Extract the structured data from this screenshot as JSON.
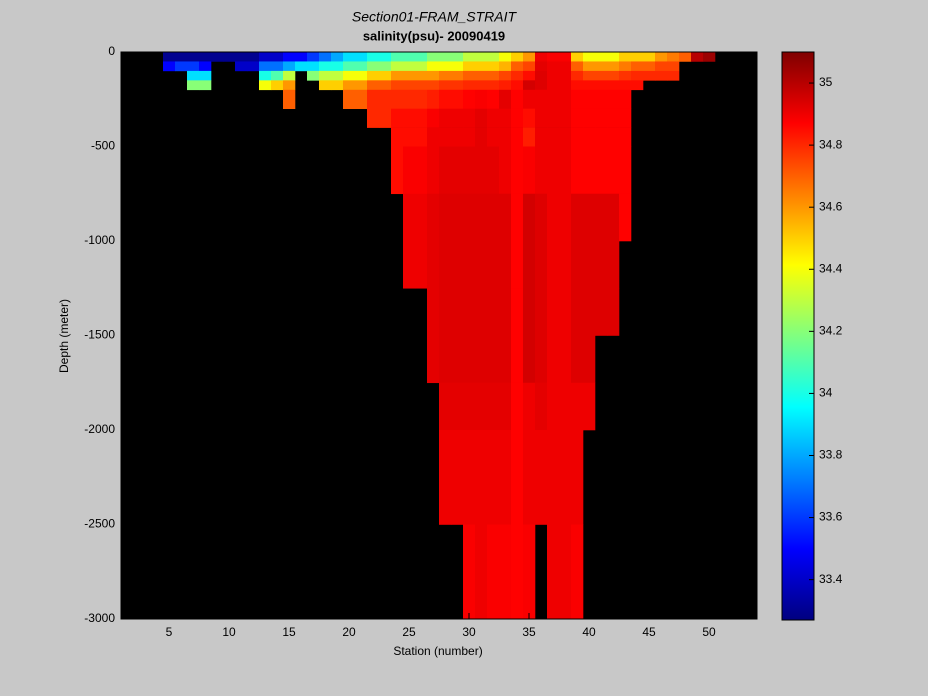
{
  "chart_data": {
    "type": "heatmap",
    "title": "Section01-FRAM_STRAIT",
    "subtitle": "salinity(psu)- 20090419",
    "x_label": "Station (number)",
    "y_label": "Depth (meter)",
    "colormap": "jet",
    "xlim": [
      1,
      54
    ],
    "xticks": [
      5,
      10,
      15,
      20,
      25,
      30,
      35,
      40,
      45,
      50
    ],
    "ylim": [
      -3000,
      0
    ],
    "yticks": [
      -3000,
      -2500,
      -2000,
      -1500,
      -1000,
      -500,
      0
    ],
    "clim": [
      33.27,
      35.1
    ],
    "cticks": [
      33.4,
      33.6,
      33.8,
      34,
      34.2,
      34.4,
      34.6,
      34.8,
      35
    ],
    "x": [
      5,
      6,
      7,
      8,
      9,
      10,
      11,
      12,
      13,
      14,
      15,
      16,
      17,
      18,
      19,
      20,
      21,
      22,
      23,
      24,
      25,
      26,
      27,
      28,
      29,
      30,
      31,
      32,
      33,
      34,
      35,
      36,
      37,
      38,
      39,
      40,
      41,
      42,
      43,
      44,
      45,
      46,
      47,
      48,
      49,
      50
    ],
    "y_edges": [
      0,
      -50,
      -100,
      -150,
      -200,
      -300,
      -400,
      -500,
      -750,
      -1000,
      -1250,
      -1500,
      -1750,
      -2000,
      -2500,
      -3000
    ],
    "values": [
      [
        33.3,
        33.5,
        null,
        null,
        null,
        null,
        null,
        null,
        null,
        null,
        null,
        null,
        null,
        null,
        null
      ],
      [
        33.3,
        33.6,
        null,
        null,
        null,
        null,
        null,
        null,
        null,
        null,
        null,
        null,
        null,
        null,
        null
      ],
      [
        33.3,
        33.6,
        33.9,
        34.2,
        null,
        null,
        null,
        null,
        null,
        null,
        null,
        null,
        null,
        null,
        null
      ],
      [
        33.3,
        33.5,
        33.9,
        34.2,
        null,
        null,
        null,
        null,
        null,
        null,
        null,
        null,
        null,
        null,
        null
      ],
      [
        33.3,
        null,
        null,
        null,
        null,
        null,
        null,
        null,
        null,
        null,
        null,
        null,
        null,
        null,
        null
      ],
      [
        33.3,
        null,
        null,
        null,
        null,
        null,
        null,
        null,
        null,
        null,
        null,
        null,
        null,
        null,
        null
      ],
      [
        33.3,
        33.4,
        null,
        null,
        null,
        null,
        null,
        null,
        null,
        null,
        null,
        null,
        null,
        null,
        null
      ],
      [
        33.3,
        33.4,
        null,
        null,
        null,
        null,
        null,
        null,
        null,
        null,
        null,
        null,
        null,
        null,
        null
      ],
      [
        33.4,
        33.7,
        34.0,
        34.4,
        null,
        null,
        null,
        null,
        null,
        null,
        null,
        null,
        null,
        null,
        null
      ],
      [
        33.4,
        33.7,
        34.1,
        34.5,
        null,
        null,
        null,
        null,
        null,
        null,
        null,
        null,
        null,
        null,
        null
      ],
      [
        33.5,
        33.8,
        34.3,
        34.6,
        34.7,
        null,
        null,
        null,
        null,
        null,
        null,
        null,
        null,
        null,
        null
      ],
      [
        33.5,
        33.9,
        null,
        null,
        null,
        null,
        null,
        null,
        null,
        null,
        null,
        null,
        null,
        null,
        null
      ],
      [
        33.6,
        33.9,
        34.2,
        null,
        null,
        null,
        null,
        null,
        null,
        null,
        null,
        null,
        null,
        null,
        null
      ],
      [
        33.7,
        34.0,
        34.3,
        34.5,
        null,
        null,
        null,
        null,
        null,
        null,
        null,
        null,
        null,
        null,
        null
      ],
      [
        33.8,
        34.0,
        34.3,
        34.5,
        null,
        null,
        null,
        null,
        null,
        null,
        null,
        null,
        null,
        null,
        null
      ],
      [
        33.9,
        34.1,
        34.4,
        34.6,
        34.7,
        null,
        null,
        null,
        null,
        null,
        null,
        null,
        null,
        null,
        null
      ],
      [
        33.9,
        34.1,
        34.4,
        34.6,
        34.7,
        null,
        null,
        null,
        null,
        null,
        null,
        null,
        null,
        null,
        null
      ],
      [
        34.0,
        34.2,
        34.5,
        34.7,
        34.8,
        34.8,
        null,
        null,
        null,
        null,
        null,
        null,
        null,
        null,
        null
      ],
      [
        34.0,
        34.2,
        34.5,
        34.7,
        34.8,
        34.8,
        null,
        null,
        null,
        null,
        null,
        null,
        null,
        null,
        null
      ],
      [
        34.1,
        34.3,
        34.6,
        34.75,
        34.8,
        34.85,
        34.85,
        34.85,
        null,
        null,
        null,
        null,
        null,
        null,
        null
      ],
      [
        34.1,
        34.3,
        34.6,
        34.75,
        34.8,
        34.85,
        34.85,
        34.88,
        34.9,
        34.9,
        null,
        null,
        null,
        null,
        null
      ],
      [
        34.1,
        34.3,
        34.6,
        34.75,
        34.8,
        34.85,
        34.85,
        34.88,
        34.9,
        34.9,
        null,
        null,
        null,
        null,
        null
      ],
      [
        34.2,
        34.4,
        34.6,
        34.75,
        34.82,
        34.88,
        34.9,
        34.9,
        34.92,
        34.92,
        34.92,
        34.92,
        null,
        null,
        null
      ],
      [
        34.2,
        34.4,
        34.65,
        34.78,
        34.85,
        34.9,
        34.9,
        34.92,
        34.93,
        34.93,
        34.93,
        34.93,
        34.92,
        34.9,
        null
      ],
      [
        34.2,
        34.4,
        34.65,
        34.78,
        34.85,
        34.9,
        34.9,
        34.92,
        34.93,
        34.93,
        34.93,
        34.93,
        34.92,
        34.9,
        null
      ],
      [
        34.3,
        34.5,
        34.7,
        34.8,
        34.87,
        34.9,
        34.9,
        34.92,
        34.93,
        34.93,
        34.93,
        34.93,
        34.92,
        34.9,
        34.88
      ],
      [
        34.3,
        34.5,
        34.7,
        34.8,
        34.88,
        34.92,
        34.92,
        34.92,
        34.93,
        34.93,
        34.93,
        34.93,
        34.92,
        34.9,
        34.9
      ],
      [
        34.3,
        34.5,
        34.7,
        34.8,
        34.87,
        34.9,
        34.9,
        34.92,
        34.93,
        34.93,
        34.93,
        34.93,
        34.92,
        34.9,
        34.88
      ],
      [
        34.4,
        34.55,
        34.75,
        34.82,
        34.92,
        34.9,
        34.9,
        34.9,
        34.93,
        34.93,
        34.93,
        34.93,
        34.92,
        34.9,
        34.88
      ],
      [
        34.5,
        34.7,
        34.8,
        34.85,
        34.87,
        34.87,
        34.87,
        34.87,
        34.87,
        34.87,
        34.87,
        34.87,
        34.87,
        34.87,
        34.87
      ],
      [
        34.6,
        34.75,
        34.85,
        34.95,
        34.9,
        34.85,
        34.82,
        34.88,
        34.95,
        34.95,
        34.95,
        34.95,
        34.9,
        34.9,
        34.88
      ],
      [
        34.9,
        34.92,
        34.93,
        34.93,
        34.9,
        34.9,
        34.9,
        34.9,
        34.93,
        34.93,
        34.93,
        34.93,
        34.92,
        34.9,
        null
      ],
      [
        34.88,
        34.9,
        34.9,
        34.9,
        34.9,
        34.9,
        34.9,
        34.9,
        34.9,
        34.9,
        34.9,
        34.9,
        34.9,
        34.9,
        34.9
      ],
      [
        34.88,
        34.9,
        34.9,
        34.9,
        34.9,
        34.9,
        34.9,
        34.9,
        34.9,
        34.9,
        34.9,
        34.9,
        34.9,
        34.9,
        34.9
      ],
      [
        34.5,
        34.7,
        34.8,
        34.85,
        34.87,
        34.87,
        34.87,
        34.87,
        34.93,
        34.93,
        34.93,
        34.93,
        34.9,
        34.9,
        34.88
      ],
      [
        34.4,
        34.6,
        34.75,
        34.85,
        34.87,
        34.87,
        34.87,
        34.87,
        34.93,
        34.93,
        34.93,
        34.93,
        34.9,
        null,
        null
      ],
      [
        34.4,
        34.6,
        34.75,
        34.85,
        34.87,
        34.87,
        34.87,
        34.87,
        34.93,
        34.93,
        34.93,
        null,
        null,
        null,
        null
      ],
      [
        34.4,
        34.6,
        34.75,
        34.85,
        34.87,
        34.87,
        34.87,
        34.87,
        34.93,
        34.93,
        34.93,
        null,
        null,
        null,
        null
      ],
      [
        34.5,
        34.65,
        34.78,
        34.85,
        34.87,
        34.87,
        34.87,
        34.87,
        34.87,
        null,
        null,
        null,
        null,
        null,
        null
      ],
      [
        34.5,
        34.7,
        34.8,
        34.85,
        null,
        null,
        null,
        null,
        null,
        null,
        null,
        null,
        null,
        null,
        null
      ],
      [
        34.5,
        34.7,
        34.8,
        null,
        null,
        null,
        null,
        null,
        null,
        null,
        null,
        null,
        null,
        null,
        null
      ],
      [
        34.6,
        34.75,
        34.8,
        null,
        null,
        null,
        null,
        null,
        null,
        null,
        null,
        null,
        null,
        null,
        null
      ],
      [
        34.65,
        34.75,
        34.8,
        null,
        null,
        null,
        null,
        null,
        null,
        null,
        null,
        null,
        null,
        null,
        null
      ],
      [
        34.7,
        null,
        null,
        null,
        null,
        null,
        null,
        null,
        null,
        null,
        null,
        null,
        null,
        null,
        null
      ],
      [
        35.0,
        null,
        null,
        null,
        null,
        null,
        null,
        null,
        null,
        null,
        null,
        null,
        null,
        null,
        null
      ],
      [
        35.05,
        null,
        null,
        null,
        null,
        null,
        null,
        null,
        null,
        null,
        null,
        null,
        null,
        null,
        null
      ]
    ]
  }
}
